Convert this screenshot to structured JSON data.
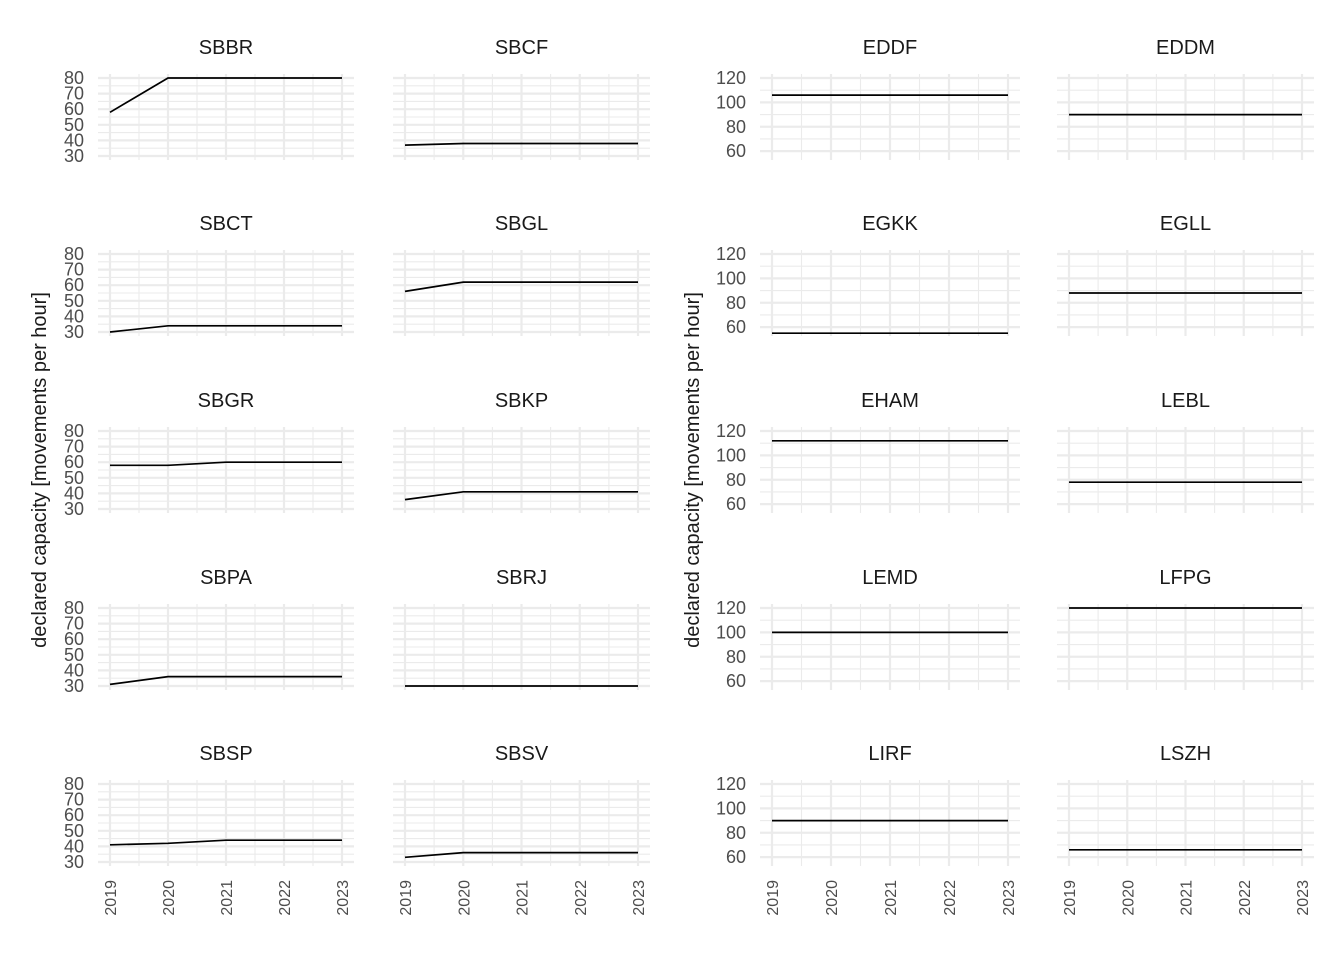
{
  "chart_data": [
    {
      "type": "line",
      "ylabel": "declared capacity [movements per hour]",
      "x": [
        2019,
        2020,
        2021,
        2022,
        2023
      ],
      "ylim": [
        30,
        80
      ],
      "y_ticks": [
        30,
        40,
        50,
        60,
        70,
        80
      ],
      "x_ticks": [
        "2019",
        "2020",
        "2021",
        "2022",
        "2023"
      ],
      "grid": true,
      "panels": [
        {
          "title": "SBBR",
          "values": [
            58,
            80,
            80,
            80,
            80
          ]
        },
        {
          "title": "SBCF",
          "values": [
            37,
            38,
            38,
            38,
            38
          ]
        },
        {
          "title": "SBCT",
          "values": [
            30,
            34,
            34,
            34,
            34
          ]
        },
        {
          "title": "SBGL",
          "values": [
            56,
            62,
            62,
            62,
            62
          ]
        },
        {
          "title": "SBGR",
          "values": [
            58,
            58,
            60,
            60,
            60
          ]
        },
        {
          "title": "SBKP",
          "values": [
            36,
            41,
            41,
            41,
            41
          ]
        },
        {
          "title": "SBPA",
          "values": [
            31,
            36,
            36,
            36,
            36
          ]
        },
        {
          "title": "SBRJ",
          "values": [
            30,
            30,
            30,
            30,
            30
          ]
        },
        {
          "title": "SBSP",
          "values": [
            41,
            42,
            44,
            44,
            44
          ]
        },
        {
          "title": "SBSV",
          "values": [
            33,
            36,
            36,
            36,
            36
          ]
        }
      ]
    },
    {
      "type": "line",
      "ylabel": "declared capacity [movements per hour]",
      "x": [
        2019,
        2020,
        2021,
        2022,
        2023
      ],
      "ylim": [
        56,
        120
      ],
      "y_ticks": [
        60,
        80,
        100,
        120
      ],
      "x_ticks": [
        "2019",
        "2020",
        "2021",
        "2022",
        "2023"
      ],
      "grid": true,
      "panels": [
        {
          "title": "EDDF",
          "values": [
            106,
            106,
            106,
            106,
            106
          ]
        },
        {
          "title": "EDDM",
          "values": [
            90,
            90,
            90,
            90,
            90
          ]
        },
        {
          "title": "EGKK",
          "values": [
            55,
            55,
            55,
            55,
            55
          ]
        },
        {
          "title": "EGLL",
          "values": [
            88,
            88,
            88,
            88,
            88
          ]
        },
        {
          "title": "EHAM",
          "values": [
            112,
            112,
            112,
            112,
            112
          ]
        },
        {
          "title": "LEBL",
          "values": [
            78,
            78,
            78,
            78,
            78
          ]
        },
        {
          "title": "LEMD",
          "values": [
            100,
            100,
            100,
            100,
            100
          ]
        },
        {
          "title": "LFPG",
          "values": [
            120,
            120,
            120,
            120,
            120
          ]
        },
        {
          "title": "LIRF",
          "values": [
            90,
            90,
            90,
            90,
            90
          ]
        },
        {
          "title": "LSZH",
          "values": [
            66,
            66,
            66,
            66,
            66
          ]
        }
      ]
    }
  ],
  "colors": {
    "grid": "#ebebeb",
    "line": "#000000",
    "text": "#1a1a1a",
    "tick": "#4d4d4d"
  }
}
